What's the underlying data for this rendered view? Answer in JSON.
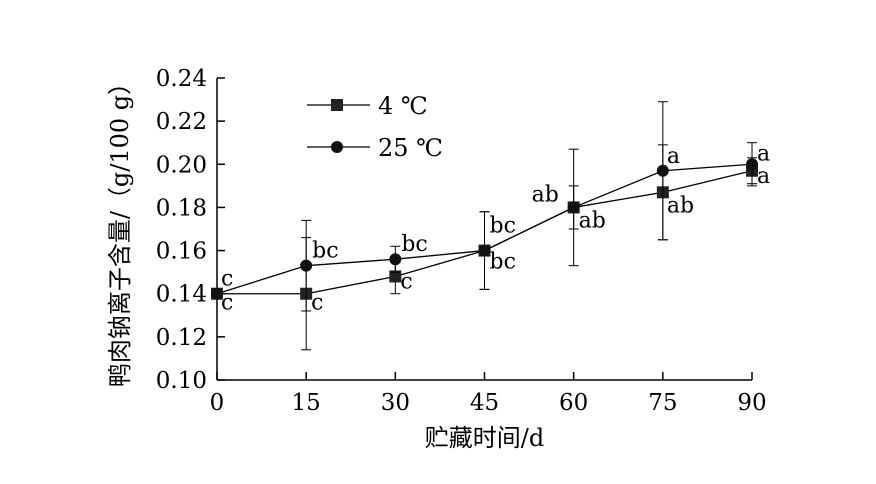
{
  "chart_data": {
    "type": "line",
    "xlabel": "贮藏时间/d",
    "ylabel": "鸭肉钠离子含量/（g/100 g）",
    "x": [
      0,
      15,
      30,
      45,
      60,
      75,
      90
    ],
    "xlim": [
      0,
      90
    ],
    "ylim": [
      0.1,
      0.24
    ],
    "xticks": [
      "0",
      "15",
      "30",
      "45",
      "60",
      "75",
      "90"
    ],
    "yticks": [
      "0.10",
      "0.12",
      "0.14",
      "0.16",
      "0.18",
      "0.20",
      "0.22",
      "0.24"
    ],
    "grid": false,
    "legend_position": "top-left",
    "series": [
      {
        "name": "4 ℃",
        "marker": "square",
        "values": [
          0.14,
          0.14,
          0.148,
          0.16,
          0.18,
          0.187,
          0.197
        ],
        "error": [
          0.0,
          0.026,
          0.008,
          0.018,
          0.027,
          0.022,
          0.006
        ],
        "labels": [
          "c",
          "c",
          "c",
          "bc",
          "ab",
          "ab",
          "a"
        ]
      },
      {
        "name": "25 ℃",
        "marker": "circle",
        "values": [
          0.14,
          0.153,
          0.156,
          0.16,
          0.18,
          0.197,
          0.2
        ],
        "error": [
          0.0,
          0.021,
          0.006,
          0.018,
          0.01,
          0.032,
          0.01
        ],
        "labels": [
          "c",
          "bc",
          "bc",
          "bc",
          "ab",
          "a",
          "a"
        ]
      }
    ]
  }
}
